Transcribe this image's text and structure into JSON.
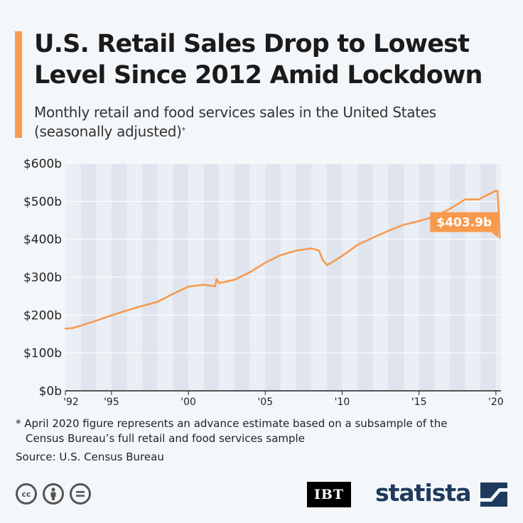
{
  "header": {
    "title_line1": "U.S. Retail Sales Drop to Lowest",
    "title_line2": "Level Since 2012 Amid Lockdown",
    "subtitle_line1": "Monthly retail and food services sales in the United States",
    "subtitle_line2": "(seasonally adjusted)",
    "subtitle_mark": "*"
  },
  "footer": {
    "footnote_line1": "* April 2020 figure represents an advance estimate based on a subsample of the",
    "footnote_line2": "Census Bureau’s full retail and food services sample",
    "source": "Source: U.S. Census Bureau",
    "ibt_logo": "IBT",
    "statista_logo": "statista"
  },
  "icons": [
    "cc-icon",
    "by-icon",
    "nd-icon",
    "statista-logo-icon"
  ],
  "colors": {
    "accent": "#f79a4d",
    "line": "#f79a4d",
    "band_light": "#eaeef5",
    "band_dark": "#dfe4ee",
    "label_bg": "#f79a4d"
  },
  "chart_data": {
    "type": "line",
    "title": "",
    "xlabel": "",
    "ylabel": "",
    "ylim": [
      0,
      600
    ],
    "xlim": [
      1992,
      2020.33
    ],
    "y_ticks": [
      0,
      100,
      200,
      300,
      400,
      500,
      600
    ],
    "y_tick_labels": [
      "$0b",
      "$100b",
      "$200b",
      "$300b",
      "$400b",
      "$500b",
      "$600b"
    ],
    "x_ticks": [
      1992,
      1995,
      2000,
      2005,
      2010,
      2015,
      2020
    ],
    "x_tick_labels": [
      "'92",
      "'95",
      "'00",
      "'05",
      "'10",
      "'15",
      "'20"
    ],
    "grid": true,
    "annotation": {
      "x": 2020.25,
      "y": 403.9,
      "label": "$403.9b"
    },
    "series": [
      {
        "x": [
          1992.0,
          1992.5,
          1993.0,
          1994.0,
          1995.0,
          1996.0,
          1997.0,
          1998.0,
          1999.0,
          2000.0,
          2001.0,
          2001.75,
          2001.83,
          2002.0,
          2003.0,
          2004.0,
          2005.0,
          2006.0,
          2007.0,
          2008.0,
          2008.5,
          2008.75,
          2009.0,
          2009.25,
          2010.0,
          2011.0,
          2012.0,
          2013.0,
          2014.0,
          2015.0,
          2016.0,
          2017.0,
          2018.0,
          2018.9,
          2019.0,
          2019.5,
          2020.0,
          2020.1,
          2020.17,
          2020.25
        ],
        "y": [
          164,
          166,
          172,
          185,
          199,
          212,
          224,
          235,
          256,
          275,
          280,
          276,
          295,
          284,
          293,
          313,
          338,
          358,
          370,
          376,
          370,
          345,
          332,
          337,
          356,
          385,
          404,
          422,
          438,
          448,
          460,
          480,
          505,
          505,
          508,
          518,
          528,
          528,
          482,
          403.9
        ]
      }
    ]
  }
}
